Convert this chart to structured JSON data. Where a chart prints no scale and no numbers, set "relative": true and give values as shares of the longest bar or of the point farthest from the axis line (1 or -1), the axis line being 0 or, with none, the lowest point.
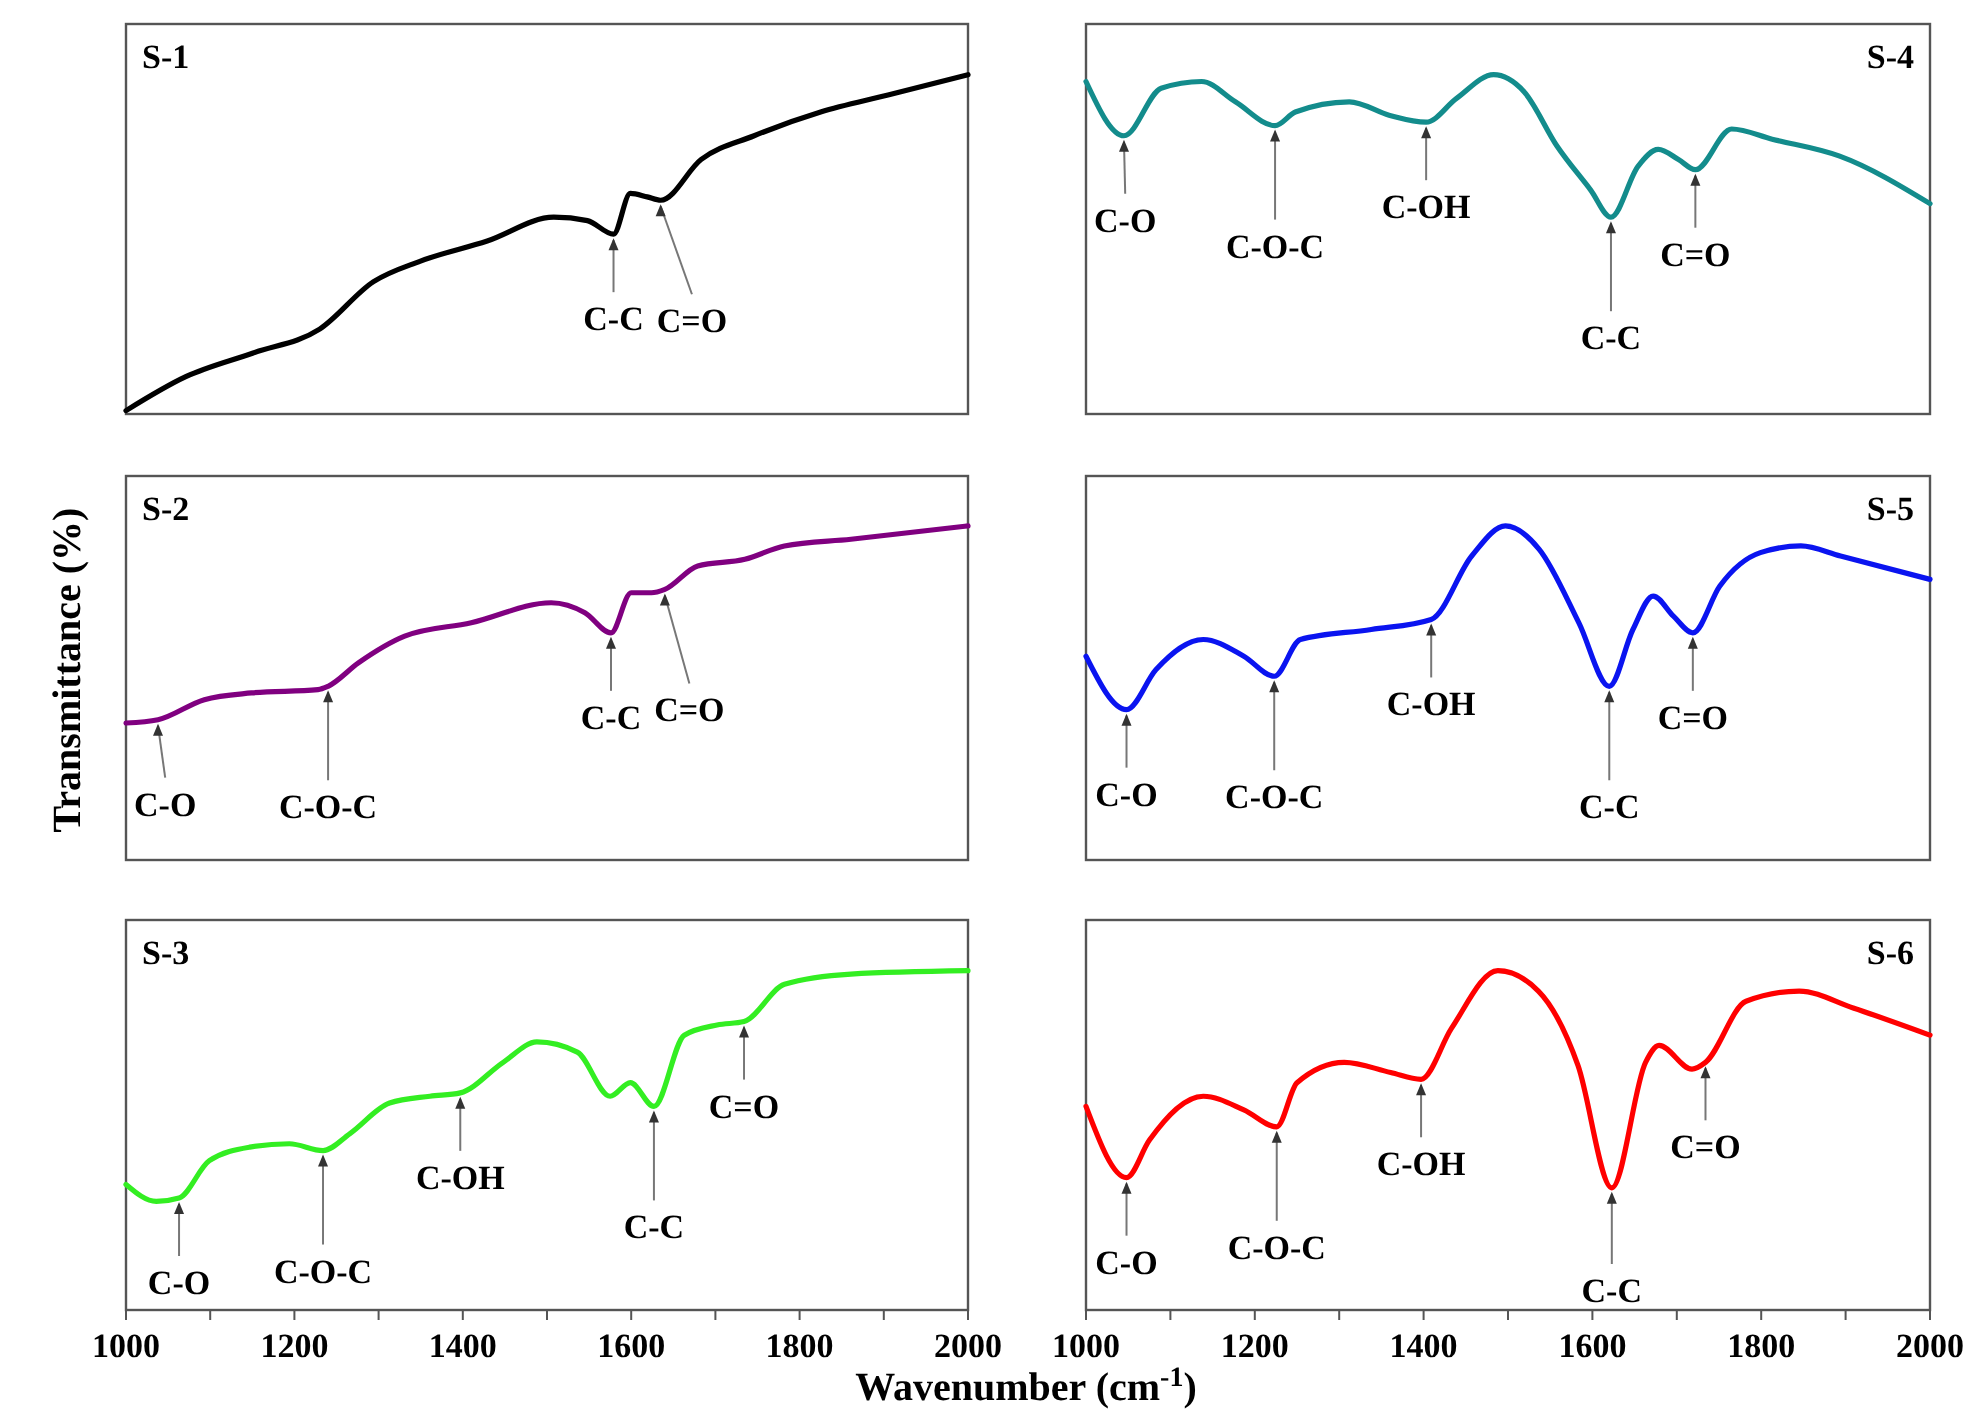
{
  "chart_data": [
    {
      "type": "line",
      "title": "S-1",
      "relative": true,
      "xlim": [
        1000,
        2000
      ],
      "tick_labels": false,
      "series": [
        {
          "color": "#000000",
          "x": [
            1000,
            1071,
            1151,
            1230,
            1294,
            1349,
            1429,
            1508,
            1548,
            1579,
            1599,
            1619,
            1635,
            1683,
            1746,
            1825,
            1905,
            2000
          ],
          "values": [
            0.01,
            0.11,
            0.18,
            0.25,
            0.39,
            0.45,
            0.51,
            0.58,
            0.57,
            0.53,
            0.65,
            0.64,
            0.63,
            0.75,
            0.82,
            0.89,
            0.94,
            1.0
          ]
        }
      ],
      "annotations": [
        {
          "text": "C-C",
          "x": 1579,
          "y": 0.53
        },
        {
          "text": "C=O",
          "x": 1635,
          "y": 0.63
        }
      ]
    },
    {
      "type": "line",
      "title": "S-4",
      "relative": true,
      "xlim": [
        1000,
        2000
      ],
      "tick_labels": false,
      "series": [
        {
          "color": "#138c8c",
          "x": [
            1000,
            1045,
            1089,
            1137,
            1177,
            1224,
            1248,
            1312,
            1360,
            1403,
            1439,
            1483,
            1519,
            1558,
            1598,
            1622,
            1654,
            1678,
            1702,
            1722,
            1765,
            1813,
            1893,
            2000
          ],
          "values": [
            0.98,
            0.82,
            0.96,
            0.98,
            0.92,
            0.85,
            0.89,
            0.92,
            0.88,
            0.86,
            0.93,
            1.0,
            0.95,
            0.79,
            0.66,
            0.58,
            0.73,
            0.78,
            0.75,
            0.72,
            0.84,
            0.81,
            0.76,
            0.62
          ]
        }
      ],
      "annotations": [
        {
          "text": "C-O",
          "x": 1045,
          "y": 0.82
        },
        {
          "text": "C-O-C",
          "x": 1224,
          "y": 0.85
        },
        {
          "text": "C-OH",
          "x": 1403,
          "y": 0.86
        },
        {
          "text": "C-C",
          "x": 1622,
          "y": 0.58
        },
        {
          "text": "C=O",
          "x": 1722,
          "y": 0.72
        }
      ]
    },
    {
      "type": "line",
      "title": "S-2",
      "ylabel": "Transmittance (%)",
      "relative": true,
      "xlim": [
        1000,
        2000
      ],
      "tick_labels": false,
      "series": [
        {
          "color": "#800080",
          "x": [
            1000,
            1038,
            1093,
            1149,
            1228,
            1240,
            1276,
            1331,
            1410,
            1505,
            1545,
            1576,
            1600,
            1624,
            1640,
            1679,
            1735,
            1782,
            1861,
            2000
          ],
          "values": [
            0.41,
            0.42,
            0.48,
            0.5,
            0.51,
            0.52,
            0.59,
            0.67,
            0.71,
            0.77,
            0.74,
            0.68,
            0.8,
            0.8,
            0.81,
            0.88,
            0.9,
            0.94,
            0.96,
            1.0
          ]
        }
      ],
      "annotations": [
        {
          "text": "C-O",
          "x": 1038,
          "y": 0.42
        },
        {
          "text": "C-O-C",
          "x": 1240,
          "y": 0.52
        },
        {
          "text": "C-C",
          "x": 1576,
          "y": 0.68
        },
        {
          "text": "C=O",
          "x": 1640,
          "y": 0.81
        }
      ]
    },
    {
      "type": "line",
      "title": "S-5",
      "relative": true,
      "xlim": [
        1000,
        2000
      ],
      "tick_labels": false,
      "series": [
        {
          "color": "#0a14f0",
          "x": [
            1000,
            1048,
            1083,
            1139,
            1187,
            1223,
            1254,
            1338,
            1409,
            1457,
            1497,
            1537,
            1584,
            1620,
            1648,
            1672,
            1696,
            1719,
            1751,
            1799,
            1847,
            1894,
            2000
          ],
          "values": [
            0.61,
            0.45,
            0.57,
            0.66,
            0.61,
            0.55,
            0.66,
            0.69,
            0.72,
            0.91,
            1.0,
            0.93,
            0.71,
            0.52,
            0.69,
            0.79,
            0.73,
            0.68,
            0.82,
            0.92,
            0.94,
            0.91,
            0.84
          ]
        }
      ],
      "annotations": [
        {
          "text": "C-O",
          "x": 1048,
          "y": 0.45
        },
        {
          "text": "C-O-C",
          "x": 1223,
          "y": 0.55
        },
        {
          "text": "C-OH",
          "x": 1409,
          "y": 0.72
        },
        {
          "text": "C-C",
          "x": 1620,
          "y": 0.52
        },
        {
          "text": "C=O",
          "x": 1719,
          "y": 0.68
        }
      ]
    },
    {
      "type": "line",
      "title": "S-3",
      "xlabel": "Wavenumber (cm$^{-1}$)",
      "relative": true,
      "xlim": [
        1000,
        2000
      ],
      "tick_labels": "x",
      "xticks": [
        1000,
        {
          "value": 1100,
          "label": null
        },
        1200,
        {
          "value": 1300,
          "label": null
        },
        1400,
        {
          "value": 1500,
          "label": null
        },
        1600,
        {
          "value": 1700,
          "label": null
        },
        1800,
        {
          "value": 1900,
          "label": null
        },
        2000
      ],
      "series": [
        {
          "color": "#33ee22",
          "x": [
            1000,
            1036,
            1063,
            1099,
            1147,
            1194,
            1234,
            1266,
            1313,
            1361,
            1397,
            1448,
            1488,
            1536,
            1575,
            1599,
            1627,
            1663,
            1702,
            1734,
            1782,
            1861,
            2000
          ],
          "values": [
            0.37,
            0.32,
            0.33,
            0.44,
            0.48,
            0.49,
            0.47,
            0.52,
            0.61,
            0.63,
            0.64,
            0.73,
            0.79,
            0.76,
            0.63,
            0.67,
            0.6,
            0.81,
            0.84,
            0.85,
            0.96,
            0.99,
            1.0
          ]
        }
      ],
      "annotations": [
        {
          "text": "C-O",
          "x": 1063,
          "y": 0.33
        },
        {
          "text": "C-O-C",
          "x": 1234,
          "y": 0.47
        },
        {
          "text": "C-OH",
          "x": 1397,
          "y": 0.64
        },
        {
          "text": "C-C",
          "x": 1627,
          "y": 0.6
        },
        {
          "text": "C=O",
          "x": 1734,
          "y": 0.85
        }
      ]
    },
    {
      "type": "line",
      "title": "S-6",
      "relative": true,
      "xlim": [
        1000,
        2000
      ],
      "tick_labels": "x",
      "xticks": [
        1000,
        {
          "value": 1100,
          "label": null
        },
        1200,
        {
          "value": 1300,
          "label": null
        },
        1400,
        {
          "value": 1500,
          "label": null
        },
        1600,
        {
          "value": 1700,
          "label": null
        },
        1800,
        {
          "value": 1900,
          "label": null
        },
        2000
      ],
      "series": [
        {
          "color": "#ff0000",
          "x": [
            1000,
            1048,
            1075,
            1139,
            1187,
            1226,
            1250,
            1306,
            1361,
            1397,
            1433,
            1488,
            1536,
            1583,
            1623,
            1663,
            1679,
            1718,
            1734,
            1782,
            1845,
            1909,
            2000
          ],
          "values": [
            0.6,
            0.39,
            0.5,
            0.63,
            0.59,
            0.54,
            0.67,
            0.73,
            0.7,
            0.68,
            0.83,
            1.0,
            0.94,
            0.72,
            0.36,
            0.73,
            0.78,
            0.71,
            0.73,
            0.91,
            0.94,
            0.89,
            0.81
          ]
        }
      ],
      "annotations": [
        {
          "text": "C-O",
          "x": 1048,
          "y": 0.39
        },
        {
          "text": "C-O-C",
          "x": 1226,
          "y": 0.54
        },
        {
          "text": "C-OH",
          "x": 1397,
          "y": 0.68
        },
        {
          "text": "C-C",
          "x": 1623,
          "y": 0.36
        },
        {
          "text": "C=O",
          "x": 1734,
          "y": 0.73
        }
      ]
    }
  ]
}
